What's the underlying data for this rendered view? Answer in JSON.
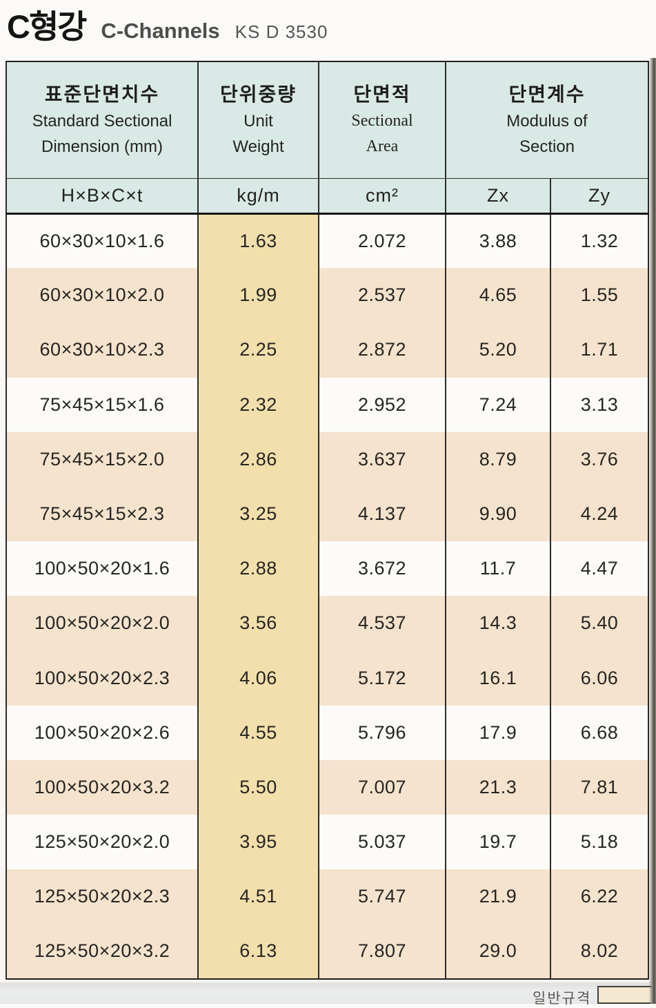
{
  "page": {
    "title_ko": "C형강",
    "title_en": "C-Channels",
    "standard_code": "KS D 3530",
    "footer_label": "일반규격"
  },
  "colors": {
    "header_bg": "#d9eae6",
    "unit_weight_column_bg": "#f2dfab",
    "shaded_row_bg": "#f5e3cd",
    "plain_row_bg": "#fcfbf8",
    "border": "#1f1e1c"
  },
  "table": {
    "header_groups": [
      {
        "ko": "표준단면치수",
        "en1": "Standard Sectional",
        "en2": "Dimension (mm)"
      },
      {
        "ko": "단위중량",
        "en1": "Unit",
        "en2": "Weight"
      },
      {
        "ko": "단면적",
        "en1": "Sectional",
        "en2": "Area"
      },
      {
        "ko": "단면계수",
        "en1": "Modulus of",
        "en2": "Section"
      }
    ],
    "subheaders": [
      "H×B×C×t",
      "kg/m",
      "cm²",
      "Zx",
      "Zy"
    ],
    "rows": [
      [
        "60×30×10×1.6",
        "1.63",
        "2.072",
        "3.88",
        "1.32"
      ],
      [
        "60×30×10×2.0",
        "1.99",
        "2.537",
        "4.65",
        "1.55"
      ],
      [
        "60×30×10×2.3",
        "2.25",
        "2.872",
        "5.20",
        "1.71"
      ],
      [
        "75×45×15×1.6",
        "2.32",
        "2.952",
        "7.24",
        "3.13"
      ],
      [
        "75×45×15×2.0",
        "2.86",
        "3.637",
        "8.79",
        "3.76"
      ],
      [
        "75×45×15×2.3",
        "3.25",
        "4.137",
        "9.90",
        "4.24"
      ],
      [
        "100×50×20×1.6",
        "2.88",
        "3.672",
        "11.7",
        "4.47"
      ],
      [
        "100×50×20×2.0",
        "3.56",
        "4.537",
        "14.3",
        "5.40"
      ],
      [
        "100×50×20×2.3",
        "4.06",
        "5.172",
        "16.1",
        "6.06"
      ],
      [
        "100×50×20×2.6",
        "4.55",
        "5.796",
        "17.9",
        "6.68"
      ],
      [
        "100×50×20×3.2",
        "5.50",
        "7.007",
        "21.3",
        "7.81"
      ],
      [
        "125×50×20×2.0",
        "3.95",
        "5.037",
        "19.7",
        "5.18"
      ],
      [
        "125×50×20×2.3",
        "4.51",
        "5.747",
        "21.9",
        "6.22"
      ],
      [
        "125×50×20×3.2",
        "6.13",
        "7.807",
        "29.0",
        "8.02"
      ]
    ]
  }
}
